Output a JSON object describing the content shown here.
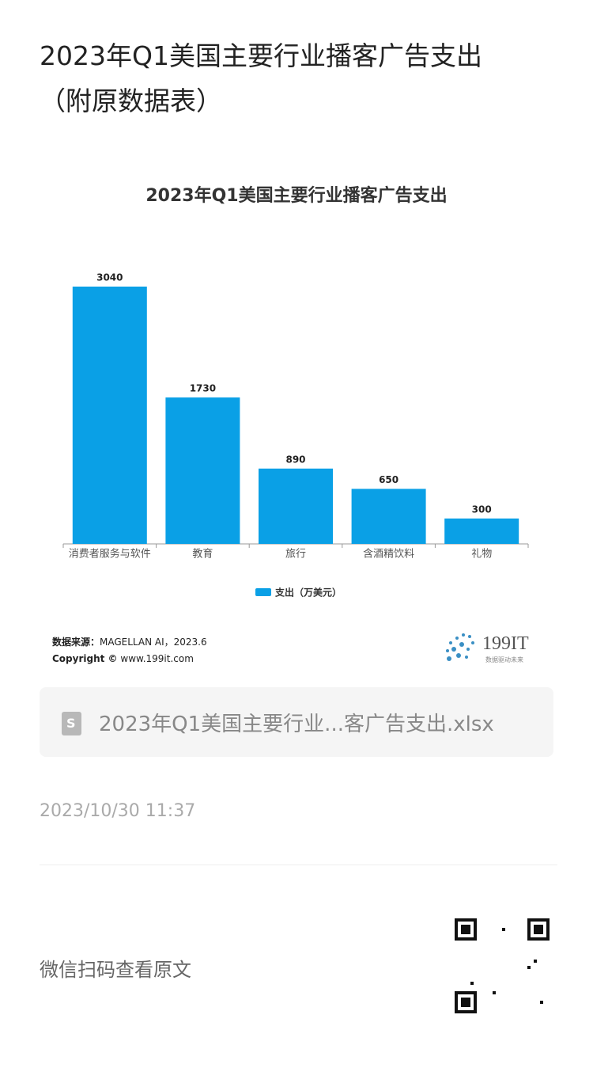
{
  "page": {
    "title": "2023年Q1美国主要行业播客广告支出（附原数据表）",
    "source_label": "数据来源：",
    "source": "MAGELLAN AI，2023.6",
    "copyright_label": "Copyright ©",
    "copyright": "www.199it.com",
    "logo": "199IT",
    "logo_slogan": "数据驱动未来",
    "attachment": "2023年Q1美国主要行业...客广告支出.xlsx",
    "date": "2023/10/30 11:37",
    "qr_caption": "微信扫码查看原文"
  },
  "chart_data": {
    "type": "bar",
    "title": "2023年Q1美国主要行业播客广告支出",
    "categories": [
      "消费者服务与软件",
      "教育",
      "旅行",
      "含酒精饮料",
      "礼物"
    ],
    "series": [
      {
        "name": "支出（万美元）",
        "color": "#0aa0e6",
        "values": [
          3040,
          1730,
          890,
          650,
          300
        ]
      }
    ]
  }
}
